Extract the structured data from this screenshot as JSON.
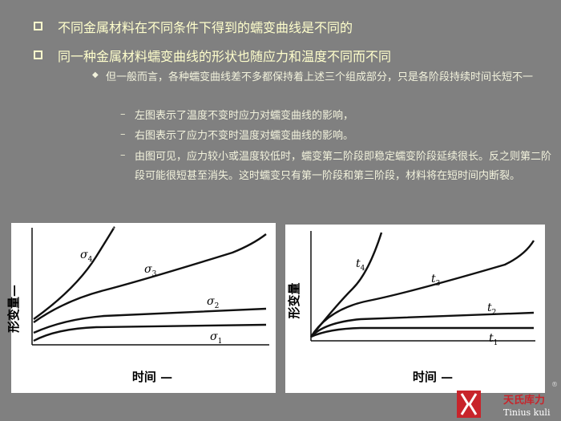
{
  "bullets": [
    "不同金属材料在不同条件下得到的蠕变曲线是不同的",
    "同一种金属材料蠕变曲线的形状也随应力和温度不同而不同"
  ],
  "sub_bullet": "但一般而言，各种蠕变曲线差不多都保持着上述三个组成部分，只是各阶段持续时间长短不一",
  "dash_items": [
    "左图表示了温度不变时应力对蠕变曲线的影响，",
    "右图表示了应力不变时温度对蠕变曲线的影响。",
    "由图可见，应力较小或温度较低时，蠕变第二阶段即稳定蠕变阶段延续很长。反之则第二阶段可能很短甚至消失。这时蠕变只有第一阶段和第三阶段，材料将在短时间内断裂。"
  ],
  "figures": [
    {
      "y_label": "形变量—",
      "x_label": "时间 —",
      "curves": [
        {
          "symbol": "σ",
          "sub": "4"
        },
        {
          "symbol": "σ",
          "sub": "3"
        },
        {
          "symbol": "σ",
          "sub": "2"
        },
        {
          "symbol": "σ",
          "sub": "1"
        }
      ]
    },
    {
      "y_label": "形变量",
      "x_label": "时间 —",
      "curves": [
        {
          "symbol": "t",
          "sub": "4"
        },
        {
          "symbol": "t",
          "sub": "3"
        },
        {
          "symbol": "t",
          "sub": "2"
        },
        {
          "symbol": "t",
          "sub": "1"
        }
      ]
    }
  ],
  "logo": {
    "name": "天氏库力",
    "latin": "Tinius kuli",
    "mark": "®"
  }
}
